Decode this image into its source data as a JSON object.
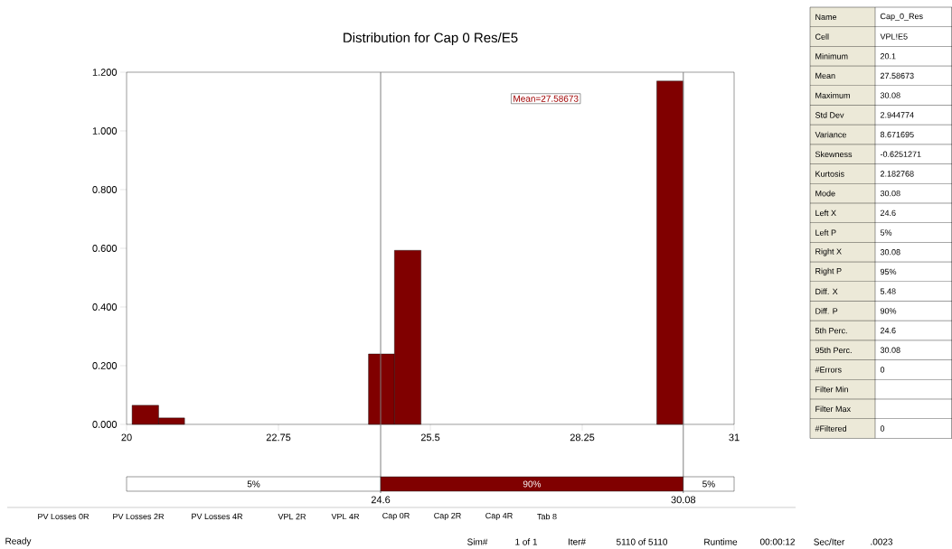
{
  "chart_data": [
    {
      "type": "histogram",
      "title": "Distribution for Cap 0 Res/E5",
      "bins": [
        20.1,
        20.58,
        21.05,
        24.38,
        24.85,
        25.33,
        29.6,
        30.08
      ],
      "values": [
        0.065,
        0.022,
        0,
        0.24,
        0.593,
        0,
        1.17
      ],
      "color": "#800000",
      "xlim": [
        20,
        31
      ],
      "xticks": [
        20,
        22.75,
        25.5,
        28.25,
        31
      ],
      "ylim": [
        0,
        1.2
      ],
      "yticks": [
        {
          "value": 0,
          "label": "0.000"
        },
        {
          "value": 0.2,
          "label": "0.200"
        },
        {
          "value": 0.4,
          "label": "0.400"
        },
        {
          "value": 0.6,
          "label": "0.600"
        },
        {
          "value": 0.8,
          "label": "0.800"
        },
        {
          "value": 1.0,
          "label": "1.000"
        },
        {
          "value": 1.2,
          "label": "1.200"
        }
      ],
      "ref_lines": [
        {
          "axis": "x",
          "value": 24.6,
          "label": "24.6",
          "color": "#808080"
        },
        {
          "axis": "x",
          "value": 30.08,
          "label": "30.08",
          "color": "#808080"
        }
      ],
      "annotations": [
        "Mean=27.58673",
        "5%",
        "90%",
        "5%"
      ]
    },
    {
      "type": "other",
      "categories": [
        "Name",
        "Cell",
        "Minimum",
        "Mean",
        "Maximum",
        "Std Dev",
        "Variance",
        "Skewness",
        "Kurtosis",
        "Mode",
        "Left X",
        "Left P",
        "Right X",
        "Right P",
        "Diff. X",
        "Diff. P",
        "5th Perc.",
        "95th Perc.",
        "#Errors",
        "Filter Min",
        "Filter Max",
        "#Filtered"
      ],
      "value_labels": [
        "Cap_0_Res",
        "VPL!E5",
        "20.1",
        "27.58673",
        "30.08",
        "2.944774",
        "8.671695",
        "-0.6251271",
        "2.182768",
        "30.08",
        "24.6",
        "5%",
        "30.08",
        "95%",
        "5.48",
        "90%",
        "24.6",
        "30.08",
        "0",
        null,
        null,
        "0"
      ]
    },
    {
      "type": "other",
      "categories": [
        "PV Losses 0R",
        "PV Losses 2R",
        "PV Losses 4R",
        "VPL 2R",
        "VPL 4R",
        "Cap 0R",
        "Cap 2R",
        "Cap 4R",
        "Tab 8"
      ],
      "annotations": [
        "Ready",
        "Sim#",
        "1 of 1",
        "Iter#",
        "5110 of 5110",
        "Runtime",
        "00:00:12",
        "Sec/Iter",
        ".0023"
      ]
    }
  ]
}
